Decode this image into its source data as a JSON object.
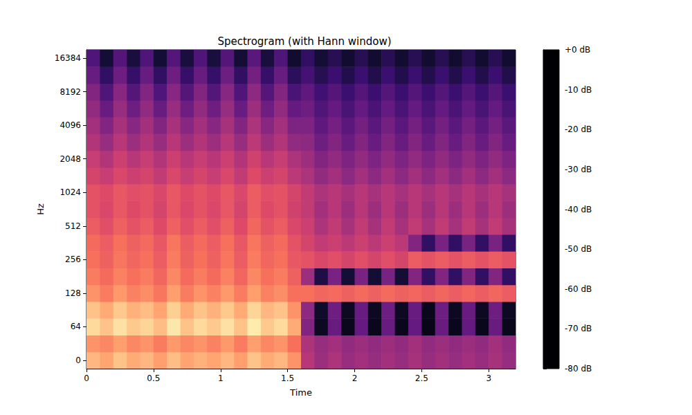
{
  "chart_data": {
    "type": "heatmap",
    "title": "Spectrogram (with Hann window)",
    "x_label": "Time",
    "y_label": "Hz",
    "color": "magma",
    "x": [
      0,
      0.1,
      0.2,
      0.3,
      0.4,
      0.5,
      0.6,
      0.7,
      0.8,
      0.9,
      1.0,
      1.1,
      1.2,
      1.3,
      1.4,
      1.5,
      1.6,
      1.7,
      1.8,
      1.9,
      2.0,
      2.1,
      2.2,
      2.3,
      2.4,
      2.5,
      2.6,
      2.7,
      2.8,
      2.9,
      3.0,
      3.1
    ],
    "y": [
      0,
      32,
      64,
      90,
      128,
      181,
      256,
      362,
      512,
      724,
      1024,
      1448,
      2048,
      2896,
      4096,
      5793,
      8192,
      11585,
      16384
    ],
    "xlim": [
      0,
      3.2
    ],
    "xticks": [
      0,
      0.5,
      1,
      1.5,
      2,
      2.5,
      3
    ],
    "yticks": [
      0,
      64,
      128,
      256,
      512,
      1024,
      2048,
      4096,
      8192,
      16384
    ],
    "z": [
      [
        -12,
        -15,
        -10,
        -14,
        -12,
        -16,
        -11,
        -15,
        -13,
        -15,
        -12,
        -16,
        -10,
        -14,
        -12,
        -18,
        -40,
        -45,
        -42,
        -46,
        -44,
        -46,
        -44,
        -46,
        -43,
        -46,
        -44,
        -46,
        -44,
        -46,
        -43,
        -46
      ],
      [
        -18,
        -20,
        -16,
        -20,
        -18,
        -22,
        -17,
        -20,
        -18,
        -21,
        -17,
        -22,
        -16,
        -20,
        -18,
        -24,
        -42,
        -46,
        -44,
        -47,
        -45,
        -47,
        -45,
        -47,
        -44,
        -47,
        -45,
        -47,
        -45,
        -47,
        -44,
        -47
      ],
      [
        -6,
        -10,
        -5,
        -9,
        -7,
        -11,
        -4,
        -10,
        -6,
        -9,
        -5,
        -10,
        -3,
        -9,
        -6,
        -14,
        -50,
        -75,
        -55,
        -76,
        -56,
        -76,
        -55,
        -76,
        -56,
        -77,
        -55,
        -76,
        -56,
        -76,
        -55,
        -76
      ],
      [
        -10,
        -14,
        -9,
        -13,
        -11,
        -15,
        -8,
        -14,
        -10,
        -13,
        -9,
        -14,
        -7,
        -12,
        -10,
        -18,
        -48,
        -74,
        -54,
        -75,
        -55,
        -75,
        -54,
        -75,
        -55,
        -76,
        -54,
        -75,
        -55,
        -75,
        -54,
        -75
      ],
      [
        -18,
        -22,
        -17,
        -21,
        -19,
        -23,
        -16,
        -22,
        -18,
        -21,
        -17,
        -22,
        -16,
        -21,
        -19,
        -24,
        -24,
        -26,
        -25,
        -27,
        -25,
        -27,
        -25,
        -27,
        -26,
        -28,
        -26,
        -28,
        -26,
        -28,
        -26,
        -28
      ],
      [
        -22,
        -25,
        -21,
        -24,
        -22,
        -26,
        -20,
        -25,
        -22,
        -25,
        -21,
        -26,
        -20,
        -24,
        -22,
        -27,
        -45,
        -70,
        -52,
        -72,
        -52,
        -72,
        -52,
        -72,
        -50,
        -66,
        -50,
        -66,
        -50,
        -66,
        -50,
        -66
      ],
      [
        -24,
        -27,
        -23,
        -26,
        -24,
        -28,
        -22,
        -27,
        -24,
        -27,
        -23,
        -28,
        -22,
        -26,
        -24,
        -29,
        -30,
        -33,
        -31,
        -34,
        -31,
        -34,
        -31,
        -34,
        -28,
        -30,
        -28,
        -30,
        -28,
        -30,
        -28,
        -30
      ],
      [
        -25,
        -28,
        -24,
        -27,
        -25,
        -29,
        -23,
        -28,
        -25,
        -28,
        -24,
        -29,
        -23,
        -27,
        -25,
        -30,
        -34,
        -38,
        -36,
        -39,
        -36,
        -39,
        -36,
        -39,
        -50,
        -66,
        -52,
        -66,
        -52,
        -66,
        -52,
        -66
      ],
      [
        -28,
        -31,
        -27,
        -30,
        -28,
        -32,
        -27,
        -31,
        -28,
        -31,
        -27,
        -32,
        -26,
        -30,
        -28,
        -33,
        -36,
        -42,
        -38,
        -43,
        -38,
        -43,
        -38,
        -43,
        -38,
        -43,
        -38,
        -43,
        -38,
        -43,
        -38,
        -43
      ],
      [
        -30,
        -33,
        -29,
        -32,
        -30,
        -34,
        -29,
        -33,
        -30,
        -33,
        -29,
        -34,
        -28,
        -32,
        -30,
        -35,
        -38,
        -44,
        -40,
        -45,
        -40,
        -45,
        -40,
        -45,
        -40,
        -45,
        -40,
        -45,
        -40,
        -45,
        -40,
        -45
      ],
      [
        -30,
        -32,
        -29,
        -31,
        -30,
        -33,
        -29,
        -32,
        -30,
        -32,
        -29,
        -33,
        -28,
        -31,
        -30,
        -34,
        -38,
        -42,
        -40,
        -43,
        -40,
        -43,
        -40,
        -43,
        -40,
        -43,
        -40,
        -43,
        -40,
        -43,
        -40,
        -43
      ],
      [
        -34,
        -37,
        -33,
        -36,
        -34,
        -38,
        -33,
        -37,
        -34,
        -37,
        -33,
        -38,
        -32,
        -36,
        -34,
        -39,
        -42,
        -47,
        -44,
        -48,
        -44,
        -48,
        -44,
        -48,
        -44,
        -48,
        -44,
        -48,
        -44,
        -48,
        -44,
        -48
      ],
      [
        -37,
        -41,
        -36,
        -40,
        -37,
        -41,
        -36,
        -40,
        -37,
        -40,
        -36,
        -41,
        -35,
        -40,
        -37,
        -42,
        -45,
        -50,
        -47,
        -51,
        -47,
        -51,
        -47,
        -51,
        -47,
        -51,
        -47,
        -51,
        -47,
        -51,
        -47,
        -51
      ],
      [
        -41,
        -46,
        -40,
        -45,
        -41,
        -46,
        -40,
        -45,
        -41,
        -45,
        -40,
        -46,
        -39,
        -45,
        -41,
        -47,
        -48,
        -54,
        -50,
        -55,
        -50,
        -55,
        -50,
        -55,
        -50,
        -55,
        -50,
        -55,
        -50,
        -55,
        -50,
        -55
      ],
      [
        -44,
        -50,
        -43,
        -49,
        -44,
        -50,
        -43,
        -49,
        -44,
        -49,
        -43,
        -50,
        -42,
        -49,
        -44,
        -51,
        -51,
        -57,
        -53,
        -58,
        -53,
        -58,
        -53,
        -58,
        -53,
        -58,
        -53,
        -58,
        -53,
        -58,
        -53,
        -58
      ],
      [
        -47,
        -55,
        -46,
        -54,
        -47,
        -55,
        -46,
        -54,
        -47,
        -54,
        -46,
        -55,
        -45,
        -54,
        -47,
        -56,
        -54,
        -60,
        -56,
        -61,
        -56,
        -61,
        -56,
        -61,
        -56,
        -61,
        -56,
        -61,
        -56,
        -61,
        -56,
        -61
      ],
      [
        -50,
        -60,
        -49,
        -59,
        -50,
        -60,
        -49,
        -59,
        -50,
        -59,
        -49,
        -60,
        -48,
        -59,
        -50,
        -61,
        -57,
        -63,
        -59,
        -64,
        -59,
        -64,
        -59,
        -64,
        -59,
        -64,
        -59,
        -64,
        -59,
        -64,
        -59,
        -64
      ],
      [
        -55,
        -66,
        -54,
        -65,
        -55,
        -66,
        -54,
        -65,
        -55,
        -65,
        -54,
        -66,
        -53,
        -65,
        -55,
        -67,
        -62,
        -68,
        -64,
        -69,
        -64,
        -69,
        -64,
        -69,
        -64,
        -69,
        -64,
        -69,
        -64,
        -69,
        -64,
        -69
      ],
      [
        -60,
        -72,
        -59,
        -71,
        -60,
        -72,
        -59,
        -71,
        -60,
        -71,
        -59,
        -72,
        -58,
        -71,
        -60,
        -73,
        -66,
        -72,
        -68,
        -73,
        -68,
        -73,
        -68,
        -73,
        -68,
        -73,
        -68,
        -73,
        -68,
        -73,
        -68,
        -73
      ]
    ],
    "clim": [
      -80,
      0
    ],
    "cticks": [
      {
        "value": 0,
        "label": "+0 dB"
      },
      {
        "value": -10,
        "label": "-10 dB"
      },
      {
        "value": -20,
        "label": "-20 dB"
      },
      {
        "value": -30,
        "label": "-30 dB"
      },
      {
        "value": -40,
        "label": "-40 dB"
      },
      {
        "value": -50,
        "label": "-50 dB"
      },
      {
        "value": -60,
        "label": "-60 dB"
      },
      {
        "value": -70,
        "label": "-70 dB"
      },
      {
        "value": -80,
        "label": "-80 dB"
      }
    ]
  }
}
